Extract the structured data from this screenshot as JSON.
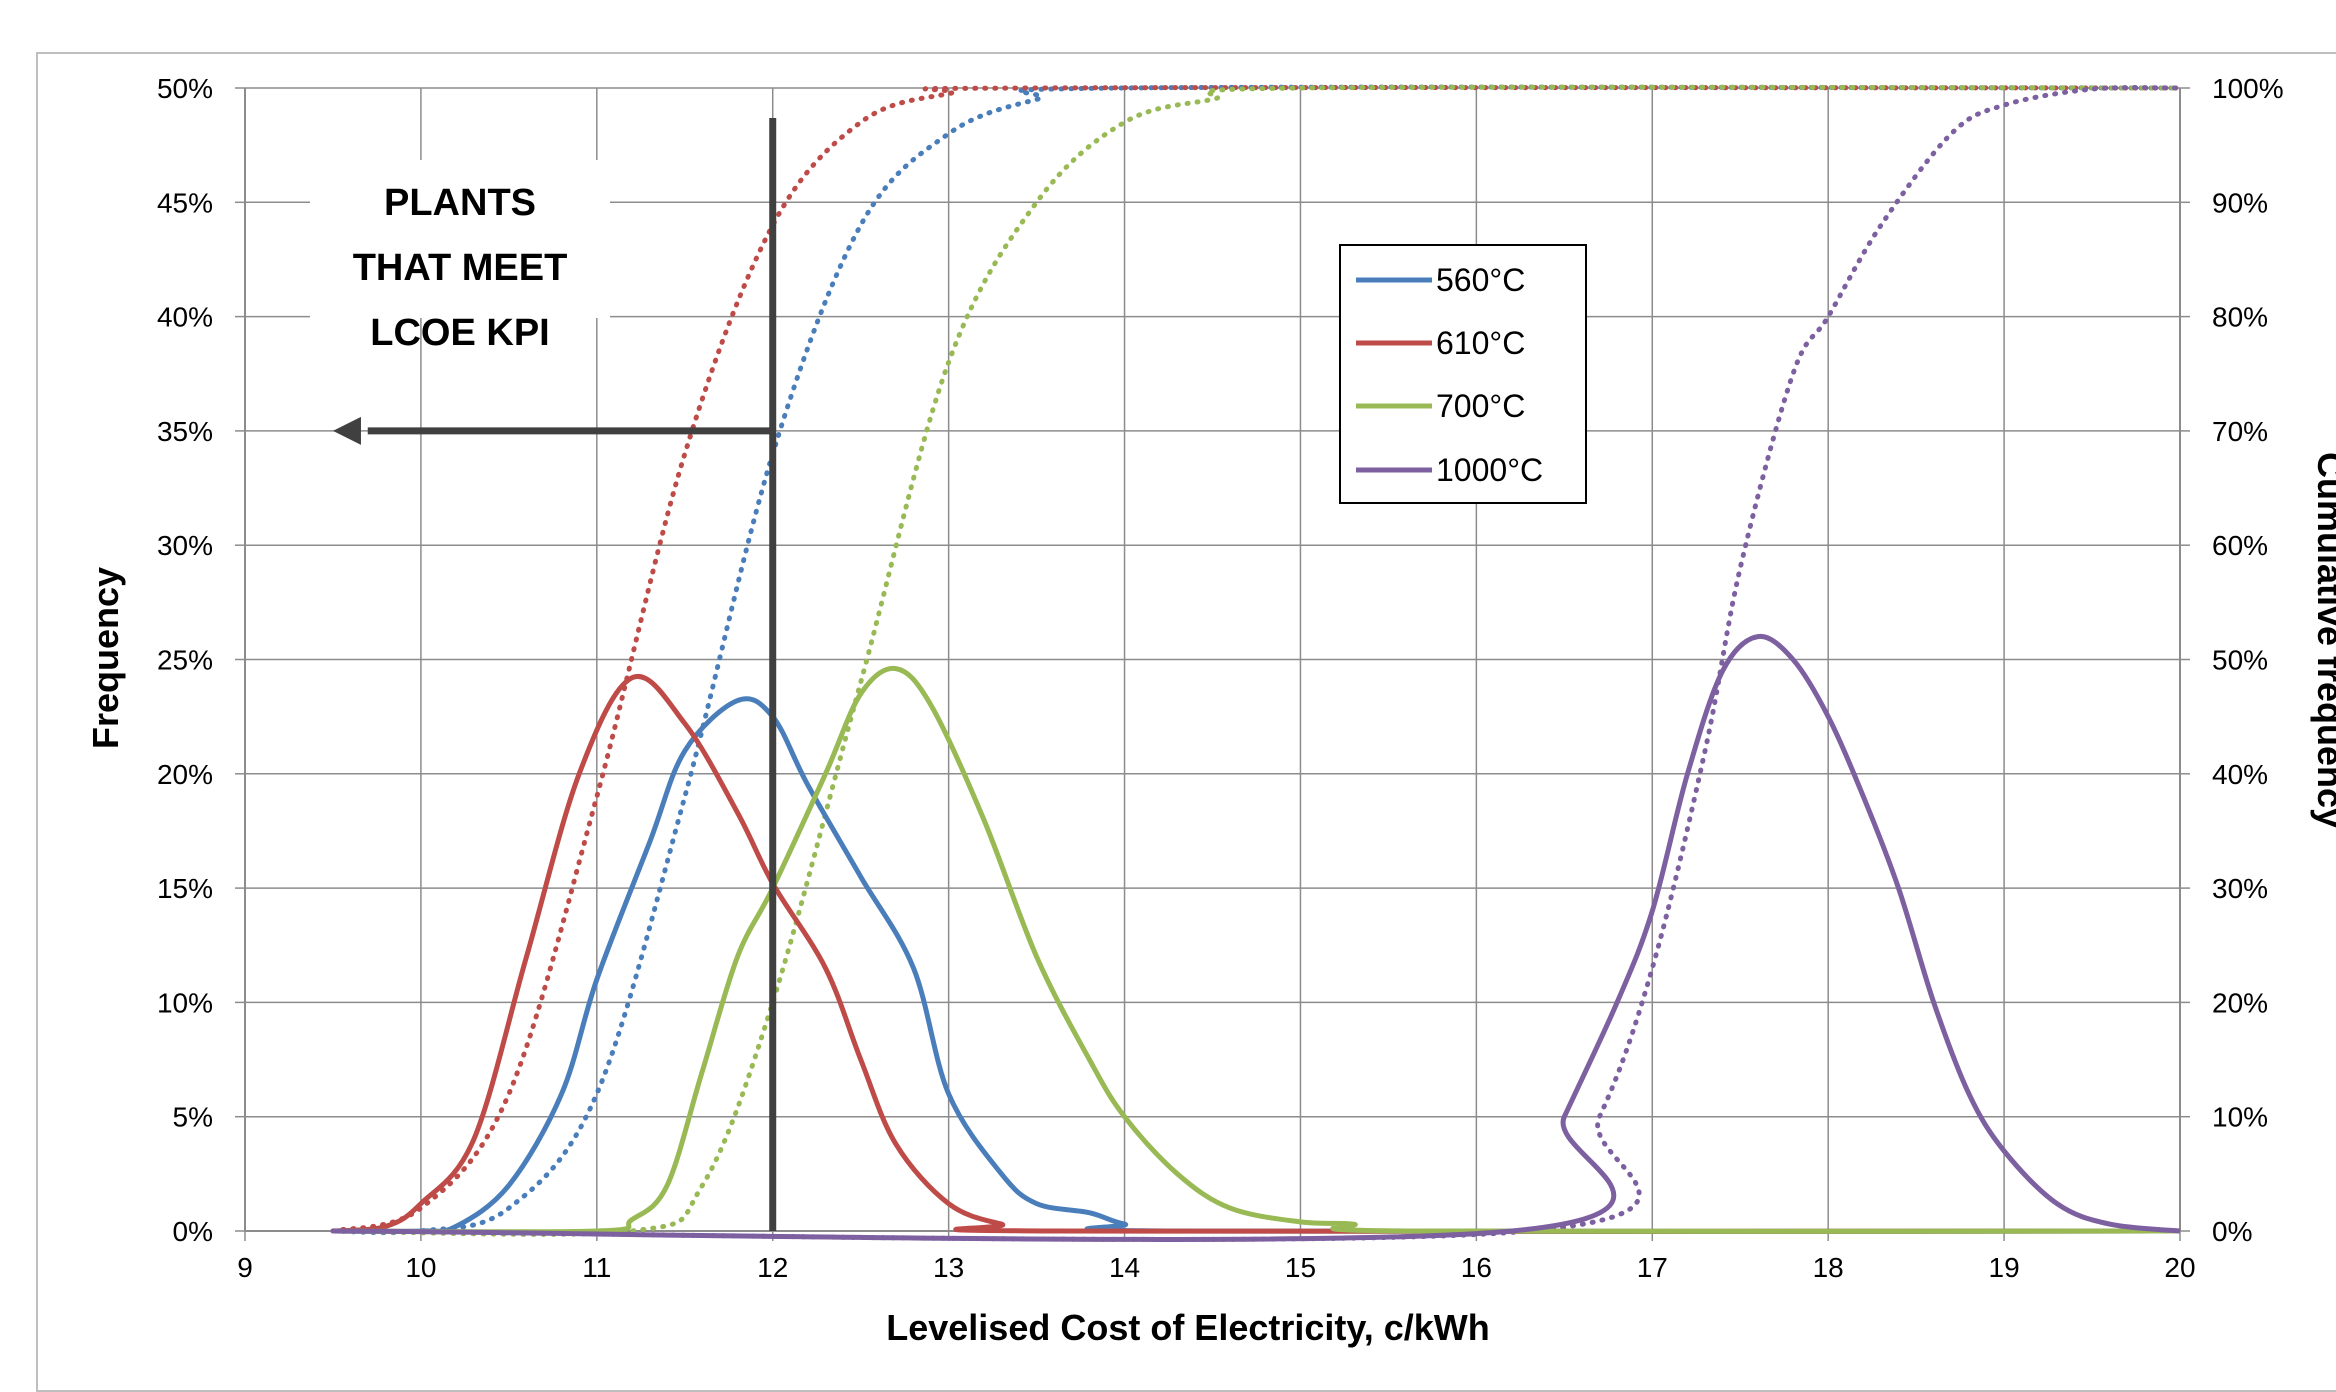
{
  "chart_data": {
    "type": "line",
    "title": "",
    "xlabel": "Levelised Cost of Electricity, c/kWh",
    "ylabel": "Frequency",
    "y2label": "Cumulative frequency",
    "xlim": [
      9,
      20
    ],
    "ylim": [
      0,
      0.5
    ],
    "y2lim": [
      0,
      1.0
    ],
    "x_ticks": [
      "9",
      "10",
      "11",
      "12",
      "13",
      "14",
      "15",
      "16",
      "17",
      "18",
      "19",
      "20"
    ],
    "y_ticks": [
      "0%",
      "5%",
      "10%",
      "15%",
      "20%",
      "25%",
      "30%",
      "35%",
      "40%",
      "45%",
      "50%"
    ],
    "y2_ticks": [
      "0%",
      "10%",
      "20%",
      "30%",
      "40%",
      "50%",
      "60%",
      "70%",
      "80%",
      "90%",
      "100%"
    ],
    "grid": true,
    "legend_position": "upper-center-right",
    "annotation": {
      "lines": [
        "PLANTS",
        "THAT MEET",
        "LCOE KPI"
      ],
      "threshold_x": 12,
      "arrow_level": 0.35
    },
    "series": [
      {
        "name": "560°C",
        "color": "#4a7ebb",
        "frequency": [
          [
            9.5,
            0
          ],
          [
            10,
            0
          ],
          [
            10.2,
            0.002
          ],
          [
            10.5,
            0.02
          ],
          [
            10.8,
            0.06
          ],
          [
            11,
            0.11
          ],
          [
            11.3,
            0.17
          ],
          [
            11.5,
            0.21
          ],
          [
            11.8,
            0.232
          ],
          [
            12,
            0.225
          ],
          [
            12.2,
            0.195
          ],
          [
            12.5,
            0.155
          ],
          [
            12.8,
            0.115
          ],
          [
            13,
            0.06
          ],
          [
            13.3,
            0.025
          ],
          [
            13.5,
            0.012
          ],
          [
            13.8,
            0.008
          ],
          [
            14,
            0.003
          ],
          [
            14.3,
            0
          ],
          [
            20,
            0
          ]
        ],
        "cumulative": [
          [
            9.5,
            0
          ],
          [
            10,
            0
          ],
          [
            10.5,
            0.02
          ],
          [
            11,
            0.12
          ],
          [
            11.5,
            0.38
          ],
          [
            12,
            0.68
          ],
          [
            12.5,
            0.88
          ],
          [
            13,
            0.96
          ],
          [
            13.5,
            0.99
          ],
          [
            14,
            1
          ],
          [
            20,
            1
          ]
        ]
      },
      {
        "name": "610°C",
        "color": "#be4b48",
        "frequency": [
          [
            9.5,
            0
          ],
          [
            9.8,
            0.002
          ],
          [
            10,
            0.012
          ],
          [
            10.3,
            0.04
          ],
          [
            10.6,
            0.12
          ],
          [
            10.9,
            0.2
          ],
          [
            11.2,
            0.242
          ],
          [
            11.5,
            0.222
          ],
          [
            11.8,
            0.183
          ],
          [
            12,
            0.152
          ],
          [
            12.3,
            0.115
          ],
          [
            12.5,
            0.075
          ],
          [
            12.7,
            0.038
          ],
          [
            13,
            0.012
          ],
          [
            13.3,
            0.003
          ],
          [
            13.6,
            0
          ],
          [
            20,
            0
          ]
        ],
        "cumulative": [
          [
            9.5,
            0
          ],
          [
            10,
            0.02
          ],
          [
            10.5,
            0.12
          ],
          [
            11,
            0.38
          ],
          [
            11.5,
            0.68
          ],
          [
            12,
            0.88
          ],
          [
            12.5,
            0.97
          ],
          [
            13,
            0.995
          ],
          [
            13.5,
            1
          ],
          [
            20,
            1
          ]
        ]
      },
      {
        "name": "700°C",
        "color": "#98b954",
        "frequency": [
          [
            9.5,
            0
          ],
          [
            11,
            0
          ],
          [
            11.2,
            0.005
          ],
          [
            11.4,
            0.02
          ],
          [
            11.6,
            0.07
          ],
          [
            11.8,
            0.12
          ],
          [
            12,
            0.15
          ],
          [
            12.3,
            0.2
          ],
          [
            12.5,
            0.235
          ],
          [
            12.7,
            0.246
          ],
          [
            12.9,
            0.23
          ],
          [
            13.2,
            0.18
          ],
          [
            13.5,
            0.12
          ],
          [
            13.8,
            0.075
          ],
          [
            14,
            0.05
          ],
          [
            14.3,
            0.025
          ],
          [
            14.6,
            0.01
          ],
          [
            15,
            0.004
          ],
          [
            15.3,
            0.003
          ],
          [
            15.6,
            0
          ],
          [
            20,
            0
          ]
        ],
        "cumulative": [
          [
            9.5,
            0
          ],
          [
            11.2,
            0
          ],
          [
            11.6,
            0.04
          ],
          [
            12,
            0.2
          ],
          [
            12.5,
            0.48
          ],
          [
            13,
            0.76
          ],
          [
            13.5,
            0.9
          ],
          [
            14,
            0.97
          ],
          [
            14.5,
            0.99
          ],
          [
            15,
            1
          ],
          [
            20,
            1
          ]
        ]
      },
      {
        "name": "1000°C",
        "color": "#7d60a0",
        "frequency": [
          [
            9.5,
            0
          ],
          [
            16.2,
            0
          ],
          [
            16.5,
            0.05
          ],
          [
            16.8,
            0.1
          ],
          [
            17,
            0.14
          ],
          [
            17.2,
            0.2
          ],
          [
            17.4,
            0.245
          ],
          [
            17.6,
            0.26
          ],
          [
            17.8,
            0.25
          ],
          [
            18,
            0.225
          ],
          [
            18.2,
            0.19
          ],
          [
            18.4,
            0.15
          ],
          [
            18.6,
            0.1
          ],
          [
            18.8,
            0.06
          ],
          [
            19,
            0.035
          ],
          [
            19.3,
            0.012
          ],
          [
            19.6,
            0.003
          ],
          [
            20,
            0
          ]
        ],
        "cumulative": [
          [
            9.5,
            0
          ],
          [
            16.3,
            0
          ],
          [
            16.7,
            0.1
          ],
          [
            17,
            0.23
          ],
          [
            17.3,
            0.42
          ],
          [
            17.5,
            0.58
          ],
          [
            17.8,
            0.75
          ],
          [
            18,
            0.8
          ],
          [
            18.3,
            0.88
          ],
          [
            18.7,
            0.96
          ],
          [
            19,
            0.985
          ],
          [
            19.5,
            0.999
          ],
          [
            20,
            1
          ]
        ]
      }
    ]
  }
}
